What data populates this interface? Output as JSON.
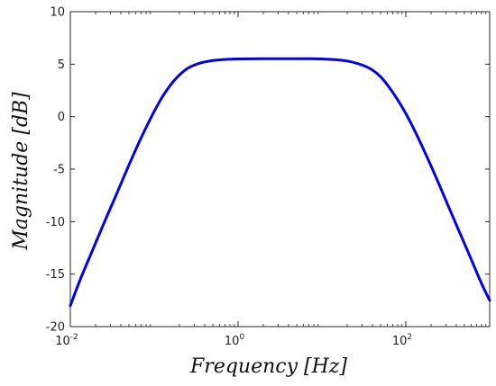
{
  "chart_data": {
    "type": "line",
    "title": "",
    "xlabel": "Frequency [Hz]",
    "ylabel": "Magnitude [dB]",
    "xscale": "log",
    "xlim": [
      0.01,
      1000
    ],
    "ylim": [
      -20,
      10
    ],
    "grid": false,
    "legend": "none",
    "x_ticks": [
      {
        "value": 0.01,
        "base": "10",
        "exp": "-2"
      },
      {
        "value": 1,
        "base": "10",
        "exp": "0"
      },
      {
        "value": 100,
        "base": "10",
        "exp": "2"
      }
    ],
    "y_ticks": [
      {
        "value": 10,
        "label": "10"
      },
      {
        "value": 5,
        "label": "5"
      },
      {
        "value": 0,
        "label": "0"
      },
      {
        "value": -5,
        "label": "-5"
      },
      {
        "value": -10,
        "label": "-10"
      },
      {
        "value": -15,
        "label": "-15"
      },
      {
        "value": -20,
        "label": "-20"
      }
    ],
    "series": [
      {
        "color": "#0000ee",
        "x": [
          0.01,
          0.013,
          0.018,
          0.025,
          0.035,
          0.05,
          0.07,
          0.1,
          0.13,
          0.18,
          0.25,
          0.35,
          0.5,
          0.7,
          1,
          2,
          5,
          10,
          20,
          35,
          50,
          70,
          100,
          140,
          200,
          280,
          400,
          560,
          800,
          1000
        ],
        "y": [
          -18.0,
          -15.6,
          -12.9,
          -10.2,
          -7.5,
          -4.6,
          -2.0,
          0.5,
          2.1,
          3.6,
          4.6,
          5.1,
          5.35,
          5.45,
          5.5,
          5.52,
          5.52,
          5.5,
          5.3,
          4.7,
          3.8,
          2.3,
          0.3,
          -2.0,
          -4.7,
          -7.4,
          -10.3,
          -13.0,
          -15.9,
          -17.5
        ]
      }
    ]
  }
}
